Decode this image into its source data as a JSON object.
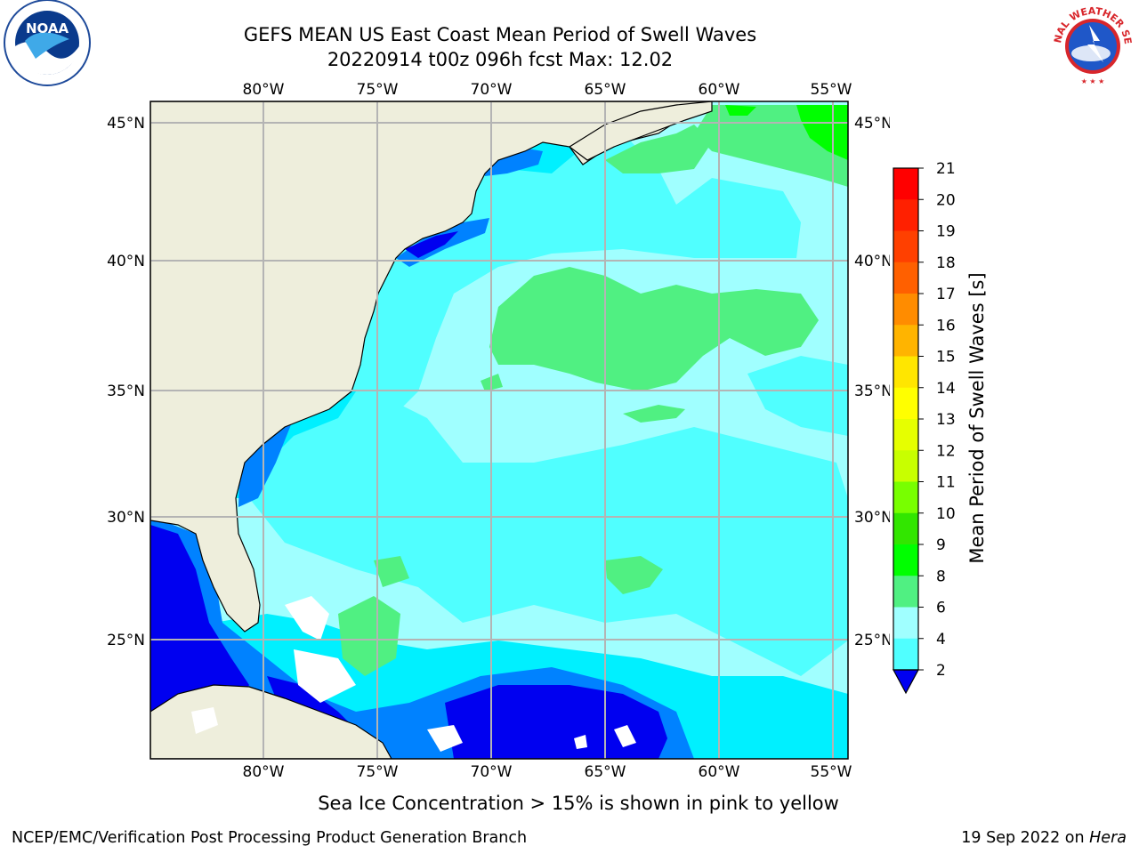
{
  "title": {
    "line1": "GEFS MEAN US East Coast Mean Period of Swell Waves",
    "line2": "20220914 t00z 096h fcst   Max: 12.02"
  },
  "map": {
    "lon_labels": [
      "80°W",
      "75°W",
      "70°W",
      "65°W",
      "60°W",
      "55°W"
    ],
    "lat_labels": [
      "45°N",
      "40°N",
      "35°N",
      "30°N",
      "25°N"
    ]
  },
  "colorbar": {
    "label": "Mean Period of Swell Waves [s]",
    "ticks": [
      "21",
      "20",
      "19",
      "18",
      "17",
      "16",
      "15",
      "14",
      "13",
      "12",
      "11",
      "10",
      "9",
      "8",
      "6",
      "4",
      "2"
    ],
    "colors": [
      "#ff0000",
      "#ff2000",
      "#ff4000",
      "#ff6000",
      "#ff8c00",
      "#ffb400",
      "#ffe600",
      "#ffff00",
      "#e6ff00",
      "#c8ff00",
      "#78ff00",
      "#32e600",
      "#00ff00",
      "#50f082",
      "#a0ffff",
      "#50ffff",
      "#00f0ff",
      "#0082ff",
      "#0000f0"
    ]
  },
  "logos": {
    "noaa": "NOAA",
    "nws": "NATIONAL WEATHER SERVICE"
  },
  "footer": {
    "note": "Sea Ice Concentration > 15% is shown in pink to yellow",
    "credit_left": "NCEP/EMC/Verification Post Processing Product Generation Branch",
    "credit_right_prefix": "19 Sep 2022 on ",
    "credit_right_host": "Hera"
  }
}
